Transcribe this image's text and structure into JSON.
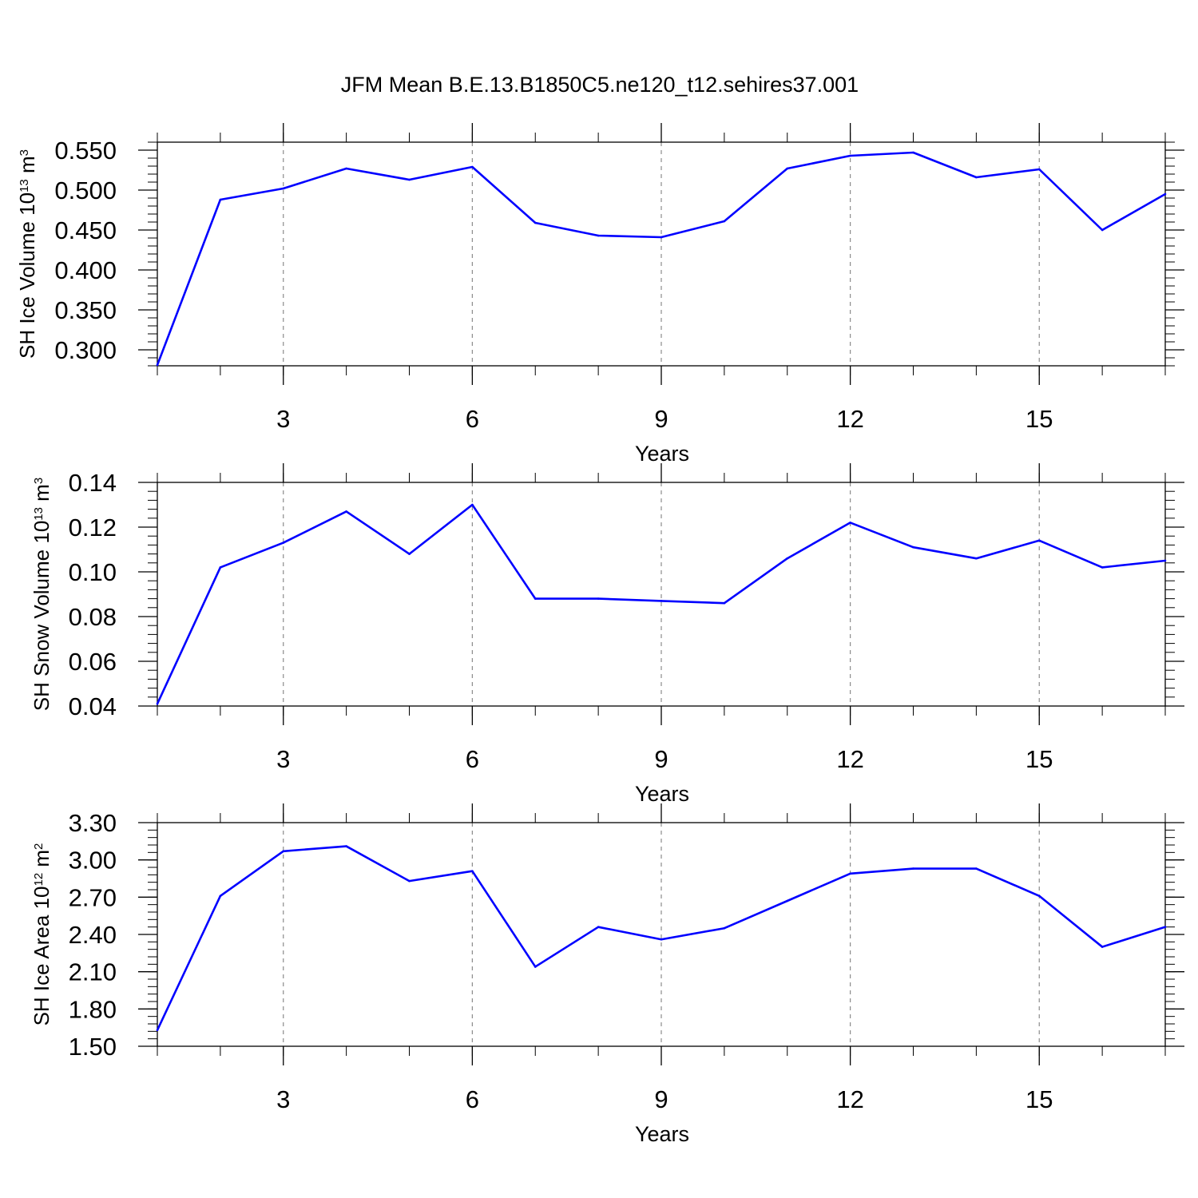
{
  "figure_title": "JFM Mean B.E.13.B1850C5.ne120_t12.sehires37.001",
  "line_color": "#0000ff",
  "chart_data": [
    {
      "type": "line",
      "title": "JFM Mean B.E.13.B1850C5.ne120_t12.sehires37.001",
      "ylabel": "SH Ice Volume 10",
      "ylabel_exponent": "13",
      "ylabel_unit": " m",
      "ylabel_unit_exponent": "3",
      "xlabel": "Years",
      "xlim": [
        1,
        17
      ],
      "ylim": [
        0.28,
        0.56
      ],
      "x_ticks": [
        3,
        6,
        9,
        12,
        15
      ],
      "x_tick_labels": [
        "3",
        "6",
        "9",
        "12",
        "15"
      ],
      "y_ticks": [
        0.3,
        0.35,
        0.4,
        0.45,
        0.5,
        0.55
      ],
      "y_tick_labels": [
        "0.300",
        "0.350",
        "0.400",
        "0.450",
        "0.500",
        "0.550"
      ],
      "y_minor_step": 0.01,
      "x_minor_step": 1,
      "grid": "vertical dashed at major x ticks",
      "series": [
        {
          "name": "SH Ice Volume",
          "x": [
            1,
            2,
            3,
            4,
            5,
            6,
            7,
            8,
            9,
            10,
            11,
            12,
            13,
            14,
            15,
            16,
            17
          ],
          "values": [
            0.281,
            0.488,
            0.502,
            0.527,
            0.513,
            0.529,
            0.459,
            0.443,
            0.441,
            0.461,
            0.527,
            0.543,
            0.547,
            0.516,
            0.526,
            0.45,
            0.495
          ]
        }
      ]
    },
    {
      "type": "line",
      "ylabel": "SH Snow Volume 10",
      "ylabel_exponent": "13",
      "ylabel_unit": " m",
      "ylabel_unit_exponent": "3",
      "xlabel": "Years",
      "xlim": [
        1,
        17
      ],
      "ylim": [
        0.04,
        0.14
      ],
      "x_ticks": [
        3,
        6,
        9,
        12,
        15
      ],
      "x_tick_labels": [
        "3",
        "6",
        "9",
        "12",
        "15"
      ],
      "y_ticks": [
        0.04,
        0.06,
        0.08,
        0.1,
        0.12,
        0.14
      ],
      "y_tick_labels": [
        "0.04",
        "0.06",
        "0.08",
        "0.10",
        "0.12",
        "0.14"
      ],
      "y_minor_step": 0.004,
      "x_minor_step": 1,
      "grid": "vertical dashed at major x ticks",
      "series": [
        {
          "name": "SH Snow Volume",
          "x": [
            1,
            2,
            3,
            4,
            5,
            6,
            7,
            8,
            9,
            10,
            11,
            12,
            13,
            14,
            15,
            16,
            17
          ],
          "values": [
            0.041,
            0.102,
            0.113,
            0.127,
            0.108,
            0.13,
            0.088,
            0.088,
            0.087,
            0.086,
            0.106,
            0.122,
            0.111,
            0.106,
            0.114,
            0.102,
            0.105
          ]
        }
      ]
    },
    {
      "type": "line",
      "ylabel": "SH Ice Area 10",
      "ylabel_exponent": "12",
      "ylabel_unit": " m",
      "ylabel_unit_exponent": "2",
      "xlabel": "Years",
      "xlim": [
        1,
        17
      ],
      "ylim": [
        1.5,
        3.3
      ],
      "x_ticks": [
        3,
        6,
        9,
        12,
        15
      ],
      "x_tick_labels": [
        "3",
        "6",
        "9",
        "12",
        "15"
      ],
      "y_ticks": [
        1.5,
        1.8,
        2.1,
        2.4,
        2.7,
        3.0,
        3.3
      ],
      "y_tick_labels": [
        "1.50",
        "1.80",
        "2.10",
        "2.40",
        "2.70",
        "3.00",
        "3.30"
      ],
      "y_minor_step": 0.06,
      "x_minor_step": 1,
      "grid": "vertical dashed at major x ticks",
      "series": [
        {
          "name": "SH Ice Area",
          "x": [
            1,
            2,
            3,
            4,
            5,
            6,
            7,
            8,
            9,
            10,
            11,
            12,
            13,
            14,
            15,
            16,
            17
          ],
          "values": [
            1.63,
            2.71,
            3.07,
            3.11,
            2.83,
            2.91,
            2.14,
            2.46,
            2.36,
            2.45,
            2.67,
            2.89,
            2.93,
            2.93,
            2.71,
            2.3,
            2.46
          ]
        }
      ]
    }
  ]
}
